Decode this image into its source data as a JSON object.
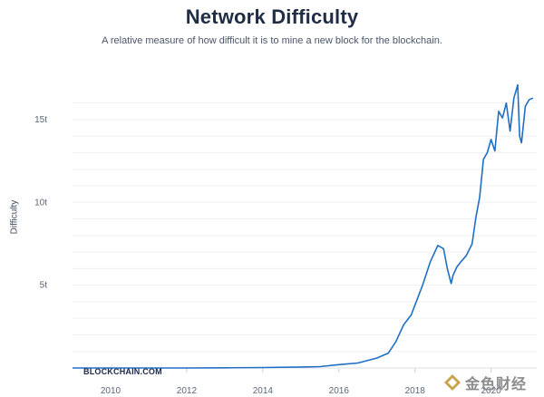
{
  "page": {
    "title": "Network Difficulty",
    "subtitle": "A relative measure of how difficult it is to mine a new block for the blockchain.",
    "watermark": "BLOCKCHAIN.COM",
    "brand_text": "金色财经"
  },
  "chart_data": {
    "type": "line",
    "title": "Network Difficulty",
    "subtitle": "A relative measure of how difficult it is to mine a new block for the blockchain.",
    "xlabel": "",
    "ylabel": "Difficulty",
    "xlim": [
      2009.0,
      2021.2
    ],
    "ylim": [
      0,
      16.2
    ],
    "x_ticks": [
      2010,
      2012,
      2014,
      2016,
      2018,
      2020
    ],
    "x_tick_labels": [
      "2010",
      "2012",
      "2014",
      "2016",
      "2018",
      "2020"
    ],
    "y_ticks": [
      5,
      10,
      15
    ],
    "y_tick_labels": [
      "5t",
      "10t",
      "15t"
    ],
    "grid": "horizontal",
    "line_color": "#1f6fc5",
    "series": [
      {
        "name": "",
        "x": [
          2009.0,
          2010.0,
          2011.0,
          2012.0,
          2013.0,
          2014.0,
          2015.0,
          2015.5,
          2016.0,
          2016.5,
          2017.0,
          2017.3,
          2017.5,
          2017.7,
          2017.9,
          2018.0,
          2018.2,
          2018.4,
          2018.6,
          2018.75,
          2018.85,
          2018.95,
          2019.0,
          2019.1,
          2019.2,
          2019.35,
          2019.5,
          2019.6,
          2019.7,
          2019.8,
          2019.9,
          2020.0,
          2020.1,
          2020.2,
          2020.3,
          2020.4,
          2020.5,
          2020.6,
          2020.7,
          2020.75,
          2020.8,
          2020.9,
          2021.0,
          2021.1
        ],
        "y": [
          0,
          0,
          0,
          0,
          0.01,
          0.03,
          0.06,
          0.08,
          0.2,
          0.3,
          0.6,
          0.9,
          1.6,
          2.6,
          3.2,
          3.8,
          5.0,
          6.4,
          7.4,
          7.2,
          6.0,
          5.1,
          5.6,
          6.1,
          6.4,
          6.8,
          7.5,
          9.1,
          10.3,
          12.6,
          13.0,
          13.8,
          13.1,
          15.5,
          15.1,
          16.0,
          14.3,
          16.3,
          17.1,
          14.0,
          13.6,
          15.8,
          16.2,
          16.3
        ]
      }
    ]
  }
}
